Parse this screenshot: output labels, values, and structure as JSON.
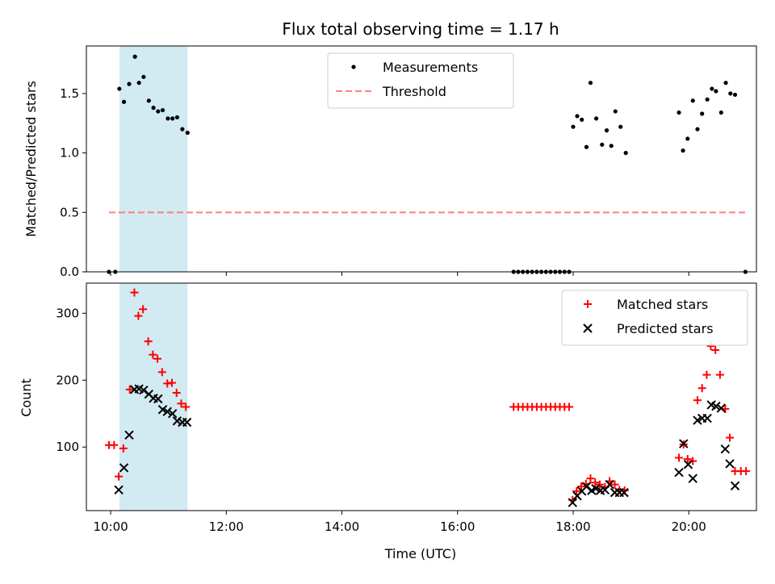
{
  "chart_data": [
    {
      "type": "scatter",
      "title": "Flux total observing time = 1.17 h",
      "xlabel": "",
      "ylabel": "Matched/Predicted stars",
      "xlim": [
        9.58,
        21.17
      ],
      "ylim": [
        0,
        1.9
      ],
      "yticks": [
        0.0,
        0.5,
        1.0,
        1.5
      ],
      "ytick_labels": [
        "0.0",
        "0.5",
        "1.0",
        "1.5"
      ],
      "xticks": [
        10,
        12,
        14,
        16,
        18,
        20
      ],
      "legend_position": "top-center",
      "shaded_interval": [
        10.15,
        11.33
      ],
      "shade_color": "#add8e6",
      "series": [
        {
          "name": "Measurements",
          "marker": "dot",
          "color": "#000000",
          "points": [
            [
              9.97,
              0
            ],
            [
              10.08,
              0
            ],
            [
              10.15,
              1.54
            ],
            [
              10.23,
              1.43
            ],
            [
              10.32,
              1.58
            ],
            [
              10.42,
              1.81
            ],
            [
              10.49,
              1.59
            ],
            [
              10.57,
              1.64
            ],
            [
              10.66,
              1.44
            ],
            [
              10.74,
              1.38
            ],
            [
              10.82,
              1.35
            ],
            [
              10.9,
              1.36
            ],
            [
              10.99,
              1.29
            ],
            [
              11.07,
              1.29
            ],
            [
              11.15,
              1.3
            ],
            [
              11.24,
              1.2
            ],
            [
              11.33,
              1.17
            ],
            [
              16.97,
              0
            ],
            [
              17.05,
              0
            ],
            [
              17.13,
              0
            ],
            [
              17.21,
              0
            ],
            [
              17.29,
              0
            ],
            [
              17.37,
              0
            ],
            [
              17.45,
              0
            ],
            [
              17.53,
              0
            ],
            [
              17.61,
              0
            ],
            [
              17.69,
              0
            ],
            [
              17.77,
              0
            ],
            [
              17.85,
              0
            ],
            [
              17.93,
              0
            ],
            [
              18.0,
              1.22
            ],
            [
              18.07,
              1.31
            ],
            [
              18.15,
              1.28
            ],
            [
              18.23,
              1.05
            ],
            [
              18.3,
              1.59
            ],
            [
              18.4,
              1.29
            ],
            [
              18.5,
              1.07
            ],
            [
              18.58,
              1.19
            ],
            [
              18.66,
              1.06
            ],
            [
              18.73,
              1.35
            ],
            [
              18.82,
              1.22
            ],
            [
              18.91,
              1.0
            ],
            [
              19.83,
              1.34
            ],
            [
              19.9,
              1.02
            ],
            [
              19.98,
              1.12
            ],
            [
              20.07,
              1.44
            ],
            [
              20.15,
              1.2
            ],
            [
              20.23,
              1.33
            ],
            [
              20.32,
              1.45
            ],
            [
              20.4,
              1.54
            ],
            [
              20.47,
              1.52
            ],
            [
              20.56,
              1.34
            ],
            [
              20.64,
              1.59
            ],
            [
              20.72,
              1.5
            ],
            [
              20.8,
              1.49
            ],
            [
              20.98,
              0
            ]
          ]
        },
        {
          "name": "Threshold",
          "line": "dashed",
          "color": "#ff7f7f",
          "x": [
            9.97,
            20.98
          ],
          "y": [
            0.5,
            0.5
          ]
        }
      ]
    },
    {
      "type": "scatter",
      "title": "",
      "xlabel": "Time (UTC)",
      "ylabel": "Count",
      "xlim": [
        9.58,
        21.17
      ],
      "ylim": [
        5,
        345
      ],
      "yticks": [
        100,
        200,
        300
      ],
      "ytick_labels": [
        "100",
        "200",
        "300"
      ],
      "xticks": [
        10,
        12,
        14,
        16,
        18,
        20
      ],
      "xtick_labels": [
        "10:00",
        "12:00",
        "14:00",
        "16:00",
        "18:00",
        "20:00"
      ],
      "legend_position": "top-right",
      "shaded_interval": [
        10.15,
        11.33
      ],
      "shade_color": "#add8e6",
      "series": [
        {
          "name": "Matched stars",
          "marker": "plus",
          "color": "#ff0000",
          "points": [
            [
              9.97,
              103
            ],
            [
              10.06,
              103
            ],
            [
              10.14,
              56
            ],
            [
              10.22,
              98
            ],
            [
              10.33,
              186
            ],
            [
              10.41,
              331
            ],
            [
              10.48,
              296
            ],
            [
              10.56,
              306
            ],
            [
              10.65,
              258
            ],
            [
              10.73,
              238
            ],
            [
              10.81,
              232
            ],
            [
              10.89,
              212
            ],
            [
              10.98,
              195
            ],
            [
              11.06,
              196
            ],
            [
              11.14,
              181
            ],
            [
              11.22,
              165
            ],
            [
              11.3,
              160
            ],
            [
              16.97,
              160
            ],
            [
              17.05,
              160
            ],
            [
              17.13,
              160
            ],
            [
              17.21,
              160
            ],
            [
              17.29,
              160
            ],
            [
              17.37,
              160
            ],
            [
              17.45,
              160
            ],
            [
              17.53,
              160
            ],
            [
              17.61,
              160
            ],
            [
              17.69,
              160
            ],
            [
              17.77,
              160
            ],
            [
              17.85,
              160
            ],
            [
              17.93,
              160
            ],
            [
              17.99,
              21
            ],
            [
              18.06,
              34
            ],
            [
              18.14,
              41
            ],
            [
              18.22,
              45
            ],
            [
              18.3,
              53
            ],
            [
              18.38,
              47
            ],
            [
              18.46,
              44
            ],
            [
              18.55,
              40
            ],
            [
              18.63,
              49
            ],
            [
              18.72,
              44
            ],
            [
              18.8,
              36
            ],
            [
              18.89,
              35
            ],
            [
              19.83,
              84
            ],
            [
              19.91,
              104
            ],
            [
              19.98,
              82
            ],
            [
              20.07,
              79
            ],
            [
              20.15,
              170
            ],
            [
              20.23,
              188
            ],
            [
              20.31,
              208
            ],
            [
              20.38,
              251
            ],
            [
              20.46,
              245
            ],
            [
              20.54,
              208
            ],
            [
              20.63,
              157
            ],
            [
              20.71,
              114
            ],
            [
              20.8,
              64
            ],
            [
              20.9,
              64
            ],
            [
              20.99,
              64
            ]
          ]
        },
        {
          "name": "Predicted stars",
          "marker": "x",
          "color": "#000000",
          "points": [
            [
              10.14,
              36
            ],
            [
              10.23,
              69
            ],
            [
              10.32,
              118
            ],
            [
              10.41,
              186
            ],
            [
              10.49,
              187
            ],
            [
              10.57,
              185
            ],
            [
              10.66,
              179
            ],
            [
              10.74,
              173
            ],
            [
              10.82,
              172
            ],
            [
              10.9,
              156
            ],
            [
              10.98,
              153
            ],
            [
              11.07,
              150
            ],
            [
              11.15,
              139
            ],
            [
              11.24,
              137
            ],
            [
              11.32,
              137
            ],
            [
              17.99,
              17
            ],
            [
              18.07,
              27
            ],
            [
              18.15,
              34
            ],
            [
              18.23,
              41
            ],
            [
              18.32,
              35
            ],
            [
              18.39,
              38
            ],
            [
              18.47,
              35
            ],
            [
              18.55,
              36
            ],
            [
              18.63,
              44
            ],
            [
              18.72,
              32
            ],
            [
              18.8,
              32
            ],
            [
              18.88,
              32
            ],
            [
              19.83,
              62
            ],
            [
              19.91,
              105
            ],
            [
              19.99,
              74
            ],
            [
              20.07,
              53
            ],
            [
              20.15,
              140
            ],
            [
              20.23,
              143
            ],
            [
              20.32,
              143
            ],
            [
              20.39,
              163
            ],
            [
              20.47,
              161
            ],
            [
              20.56,
              158
            ],
            [
              20.63,
              97
            ],
            [
              20.71,
              75
            ],
            [
              20.8,
              42
            ]
          ]
        }
      ]
    }
  ]
}
